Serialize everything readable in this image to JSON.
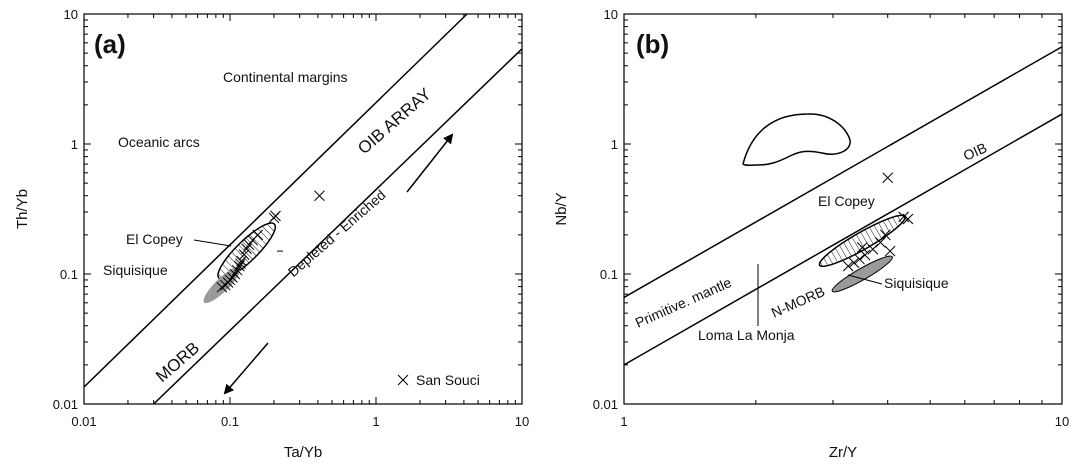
{
  "chart_data": [
    {
      "panel": "(a)",
      "type": "scatter",
      "xlabel": "Ta/Yb",
      "ylabel": "Th/Yb",
      "xscale": "log",
      "yscale": "log",
      "xlim": [
        0.01,
        10
      ],
      "ylim": [
        0.01,
        10
      ],
      "xticks": [
        {
          "v": 0.01,
          "label": "0.01"
        },
        {
          "v": 0.1,
          "label": "0.1"
        },
        {
          "v": 1,
          "label": "1"
        },
        {
          "v": 10,
          "label": "10"
        }
      ],
      "yticks": [
        {
          "v": 0.01,
          "label": "0.01"
        },
        {
          "v": 0.1,
          "label": "0.1"
        },
        {
          "v": 1,
          "label": "1"
        },
        {
          "v": 10,
          "label": "10"
        }
      ],
      "array_lines": [
        {
          "x": [
            0.01,
            4.2
          ],
          "y": [
            0.0135,
            10
          ]
        },
        {
          "x": [
            0.03,
            10
          ],
          "y": [
            0.01,
            5.4
          ]
        }
      ],
      "series": [
        {
          "name": "San Souci",
          "marker": "x",
          "points": [
            {
              "x": 0.088,
              "y": 0.079
            },
            {
              "x": 0.093,
              "y": 0.082
            },
            {
              "x": 0.097,
              "y": 0.086
            },
            {
              "x": 0.1,
              "y": 0.09
            },
            {
              "x": 0.104,
              "y": 0.094
            },
            {
              "x": 0.108,
              "y": 0.1
            },
            {
              "x": 0.112,
              "y": 0.107
            },
            {
              "x": 0.116,
              "y": 0.115
            },
            {
              "x": 0.12,
              "y": 0.126
            },
            {
              "x": 0.125,
              "y": 0.141
            },
            {
              "x": 0.13,
              "y": 0.156
            },
            {
              "x": 0.135,
              "y": 0.168
            },
            {
              "x": 0.143,
              "y": 0.182
            },
            {
              "x": 0.155,
              "y": 0.2
            },
            {
              "x": 0.118,
              "y": 0.12
            },
            {
              "x": 0.2,
              "y": 0.27
            },
            {
              "x": 0.205,
              "y": 0.28
            },
            {
              "x": 0.41,
              "y": 0.4
            }
          ]
        }
      ],
      "dash_marker": {
        "x": 0.22,
        "y": 0.15
      },
      "legend": {
        "text": "San Souci",
        "position": "bottom-right"
      },
      "fields": [
        {
          "name": "El Copey",
          "style": "hatched",
          "center": {
            "x": 0.13,
            "y": 0.15
          },
          "spread_x": 1.6,
          "spread_y": 1.5
        },
        {
          "name": "Siquisique",
          "style": "grey-fill",
          "center": {
            "x": 0.088,
            "y": 0.082
          },
          "spread_x": 1.35,
          "spread_y": 1.3
        }
      ],
      "labels": {
        "continental": "Continental margins",
        "oceanic": "Oceanic arcs",
        "oib": "OIB ARRAY",
        "trend": "Depleted - Enriched",
        "morb": "MORB",
        "el_copey": "El Copey",
        "siquisique": "Siquisique"
      }
    },
    {
      "panel": "(b)",
      "type": "scatter",
      "xlabel": "Zr/Y",
      "ylabel": "Nb/Y",
      "xscale": "log",
      "yscale": "log",
      "xlim": [
        1,
        10
      ],
      "ylim": [
        0.01,
        10
      ],
      "xticks": [
        {
          "v": 1,
          "label": "1"
        },
        {
          "v": 10,
          "label": "10"
        }
      ],
      "yticks": [
        {
          "v": 0.01,
          "label": "0.01"
        },
        {
          "v": 0.1,
          "label": "0.1"
        },
        {
          "v": 1,
          "label": "1"
        },
        {
          "v": 10,
          "label": "10"
        }
      ],
      "array_lines": [
        {
          "x": [
            1,
            10
          ],
          "y": [
            0.066,
            5.6
          ]
        },
        {
          "x": [
            1,
            10
          ],
          "y": [
            0.02,
            1.7
          ]
        }
      ],
      "series": [
        {
          "name": "San Souci",
          "marker": "x",
          "points": [
            {
              "x": 3.25,
              "y": 0.115
            },
            {
              "x": 3.35,
              "y": 0.122
            },
            {
              "x": 3.45,
              "y": 0.13
            },
            {
              "x": 3.55,
              "y": 0.14
            },
            {
              "x": 3.7,
              "y": 0.155
            },
            {
              "x": 3.85,
              "y": 0.175
            },
            {
              "x": 3.95,
              "y": 0.2
            },
            {
              "x": 3.5,
              "y": 0.16
            },
            {
              "x": 4.05,
              "y": 0.15
            },
            {
              "x": 4.35,
              "y": 0.275
            },
            {
              "x": 4.45,
              "y": 0.265
            },
            {
              "x": 4.0,
              "y": 0.55
            }
          ]
        }
      ],
      "fields": [
        {
          "name": "El Copey",
          "style": "hatched",
          "center": {
            "x": 3.5,
            "y": 0.18
          },
          "spread_x": 1.22,
          "spread_y": 1.4
        },
        {
          "name": "Siquisique",
          "style": "grey-fill",
          "center": {
            "x": 3.5,
            "y": 0.1
          },
          "spread_x": 1.15,
          "spread_y": 1.25
        }
      ],
      "labels": {
        "oib": "OIB",
        "primitive": "Primitive. mantle",
        "nmorb": "N-MORB",
        "el_copey": "El Copey",
        "siquisique": "Siquisique",
        "loma": "Loma La Monja"
      }
    }
  ]
}
